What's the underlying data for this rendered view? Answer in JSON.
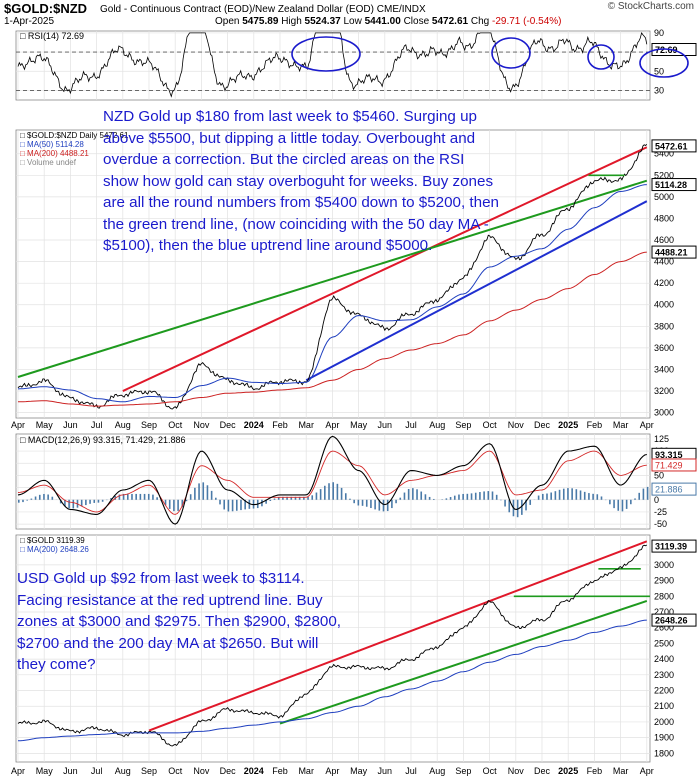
{
  "header": {
    "symbol": "$GOLD:$NZD",
    "title": "Gold - Continuous Contract (EOD)/New Zealand Dollar (EOD)  CME/INDX",
    "watermark": "© StockCharts.com",
    "date": "1-Apr-2025",
    "ohlc": {
      "open_label": "Open",
      "open": "5475.89",
      "high_label": "High",
      "high": "5524.37",
      "low_label": "Low",
      "low": "5441.00",
      "close_label": "Close",
      "close": "5472.61",
      "chg_label": "Chg",
      "chg": "-29.71 (-0.54%)"
    }
  },
  "colors": {
    "price": "#000000",
    "ma50": "#1f3fbf",
    "ma200": "#cc2222",
    "rsi": "#000000",
    "macd": "#000000",
    "signal": "#d42a2a",
    "hist": "#4a7aa8",
    "trend_red": "#e0182a",
    "trend_green": "#1e9a1e",
    "trend_blue": "#1f2fd0",
    "circle": "#1a1acc",
    "annot": "#1a1acc"
  },
  "annotations": {
    "nzd": "NZD Gold up $180 from last week to $5460. Surging up above $5500, but dipping a little today. Overbought and overdue a correction. But the circled areas on the RSI show how gold can stay overboguht for weeks. Buy zones are all the round numbers from $5400 down to $5200, then the green trend line, (now coinciding with the 50 day MA - $5100), then the blue uptrend line around $5000.",
    "usd": "USD Gold up $92 from last week to $3114. Facing resistance at the red uptrend line. Buy zones at $3000 and $2975. Then $2900, $2800, $2700 and the 200 day MA at $2650. But will they come?"
  },
  "chart_data": [
    {
      "type": "line",
      "title": "RSI(14) 72.69",
      "series": [
        {
          "name": "RSI(14)",
          "last": "72.69"
        }
      ],
      "ylim": [
        20,
        92
      ],
      "yticks": [
        "90",
        "70",
        "50",
        "30"
      ],
      "ytick_values": [
        90,
        70,
        50,
        30
      ],
      "reference_lines": [
        70,
        30
      ],
      "current_label": "72.69",
      "circled_overbought_periods": [
        "Mar-2024",
        "Oct-2024",
        "Feb-2025",
        "Apr-2025"
      ]
    },
    {
      "type": "line",
      "title": "$GOLD:$NZD Daily 5472.61",
      "legend": [
        "$GOLD:$NZD Daily 5472.61",
        "MA(50) 5114.28",
        "MA(200) 4488.21",
        "Volume undef"
      ],
      "ylim": [
        2950,
        5620
      ],
      "yticks": [
        "5400",
        "5200",
        "5000",
        "4800",
        "4600",
        "4400",
        "4200",
        "4000",
        "3800",
        "3600",
        "3400",
        "3200",
        "3000"
      ],
      "ytick_values": [
        5400,
        5200,
        5000,
        4800,
        4600,
        4400,
        4200,
        4000,
        3800,
        3600,
        3400,
        3200,
        3000
      ],
      "value_labels": {
        "price": "5472.61",
        "ma50": "5114.28",
        "ma200": "4488.21"
      },
      "x": [
        "2023-04",
        "2023-05",
        "2023-06",
        "2023-07",
        "2023-08",
        "2023-09",
        "2023-10",
        "2023-11",
        "2023-12",
        "2024-01",
        "2024-02",
        "2024-03",
        "2024-04",
        "2024-05",
        "2024-06",
        "2024-07",
        "2024-08",
        "2024-09",
        "2024-10",
        "2024-11",
        "2024-12",
        "2025-01",
        "2025-02",
        "2025-03",
        "2025-04"
      ],
      "price": [
        3230,
        3290,
        3130,
        3060,
        3170,
        3200,
        3040,
        3440,
        3300,
        3230,
        3290,
        3290,
        4050,
        3900,
        3780,
        3920,
        4050,
        4250,
        4620,
        4420,
        4650,
        4900,
        5150,
        5160,
        5472
      ],
      "ma50": [
        3220,
        3240,
        3210,
        3130,
        3100,
        3150,
        3140,
        3250,
        3320,
        3280,
        3270,
        3280,
        3700,
        3900,
        3850,
        3860,
        3980,
        4100,
        4350,
        4450,
        4520,
        4700,
        4900,
        5050,
        5114
      ],
      "ma200": [
        3100,
        3110,
        3080,
        3060,
        3070,
        3080,
        3100,
        3140,
        3180,
        3190,
        3210,
        3230,
        3300,
        3400,
        3500,
        3580,
        3640,
        3720,
        3850,
        3950,
        4050,
        4150,
        4280,
        4400,
        4488
      ],
      "trend_lines": [
        {
          "name": "red uptrend",
          "color": "#e0182a",
          "from": [
            "2023-08",
            3200
          ],
          "to": [
            "2025-04",
            5460
          ]
        },
        {
          "name": "green trend",
          "color": "#1e9a1e",
          "from": [
            "2023-04",
            3330
          ],
          "to": [
            "2025-04",
            5150
          ]
        },
        {
          "name": "blue uptrend",
          "color": "#1f2fd0",
          "from": [
            "2024-03",
            3300
          ],
          "to": [
            "2025-04",
            4960
          ]
        }
      ],
      "support_level": 5200
    },
    {
      "type": "line",
      "title": "MACD(12,26,9) 93.315, 71.429, 21.886",
      "series": [
        {
          "name": "MACD",
          "last": "93.315"
        },
        {
          "name": "Signal",
          "last": "71.429"
        },
        {
          "name": "Histogram",
          "last": "21.886"
        }
      ],
      "ylim": [
        -60,
        135
      ],
      "yticks": [
        "125",
        "100",
        "75",
        "50",
        "25",
        "0",
        "-25",
        "-50"
      ],
      "ytick_values": [
        125,
        100,
        75,
        50,
        25,
        0,
        -25,
        -50
      ],
      "macd": [
        10,
        40,
        -20,
        -30,
        20,
        40,
        -50,
        100,
        20,
        -10,
        10,
        10,
        130,
        60,
        -10,
        60,
        50,
        70,
        115,
        -20,
        30,
        100,
        110,
        30,
        93
      ],
      "signal": [
        15,
        30,
        -5,
        -25,
        10,
        30,
        -30,
        70,
        40,
        5,
        5,
        5,
        100,
        70,
        10,
        40,
        50,
        60,
        100,
        10,
        20,
        80,
        100,
        50,
        71
      ]
    },
    {
      "type": "line",
      "title": "$GOLD 3119.39",
      "legend": [
        "$GOLD 3119.39",
        "MA(200) 2648.26"
      ],
      "ylim": [
        1745,
        3190
      ],
      "yticks": [
        "3000",
        "2900",
        "2800",
        "2700",
        "2600",
        "2500",
        "2400",
        "2300",
        "2200",
        "2100",
        "2000",
        "1900",
        "1800"
      ],
      "ytick_values": [
        3000,
        2900,
        2800,
        2700,
        2600,
        2500,
        2400,
        2300,
        2200,
        2100,
        2000,
        1900,
        1800
      ],
      "value_labels": {
        "price": "3119.39",
        "ma200": "2648.26"
      },
      "x": [
        "2023-04",
        "2023-05",
        "2023-06",
        "2023-07",
        "2023-08",
        "2023-09",
        "2023-10",
        "2023-11",
        "2023-12",
        "2024-01",
        "2024-02",
        "2024-03",
        "2024-04",
        "2024-05",
        "2024-06",
        "2024-07",
        "2024-08",
        "2024-09",
        "2024-10",
        "2024-11",
        "2024-12",
        "2025-01",
        "2025-02",
        "2025-03",
        "2025-04"
      ],
      "price": [
        1990,
        2000,
        1940,
        1960,
        1920,
        1940,
        1850,
        2000,
        2080,
        2060,
        2040,
        2180,
        2350,
        2350,
        2340,
        2400,
        2480,
        2600,
        2760,
        2600,
        2650,
        2780,
        2900,
        2980,
        3119
      ],
      "ma200": [
        1880,
        1900,
        1910,
        1920,
        1930,
        1930,
        1930,
        1940,
        1960,
        1980,
        2000,
        2020,
        2060,
        2100,
        2160,
        2210,
        2260,
        2320,
        2380,
        2430,
        2480,
        2520,
        2570,
        2610,
        2648
      ],
      "trend_lines": [
        {
          "name": "red uptrend",
          "color": "#e0182a",
          "from": [
            "2023-09",
            1945
          ],
          "to": [
            "2025-04",
            3150
          ]
        },
        {
          "name": "green trend",
          "color": "#1e9a1e",
          "from": [
            "2024-02",
            1990
          ],
          "to": [
            "2025-04",
            2770
          ]
        }
      ],
      "support_levels": [
        2800,
        2975
      ]
    }
  ],
  "xaxis": {
    "labels": [
      "Apr",
      "May",
      "Jun",
      "Jul",
      "Aug",
      "Sep",
      "Oct",
      "Nov",
      "Dec",
      "2024",
      "Feb",
      "Mar",
      "Apr",
      "May",
      "Jun",
      "Jul",
      "Aug",
      "Sep",
      "Oct",
      "Nov",
      "Dec",
      "2025",
      "Feb",
      "Mar",
      "Apr"
    ]
  }
}
